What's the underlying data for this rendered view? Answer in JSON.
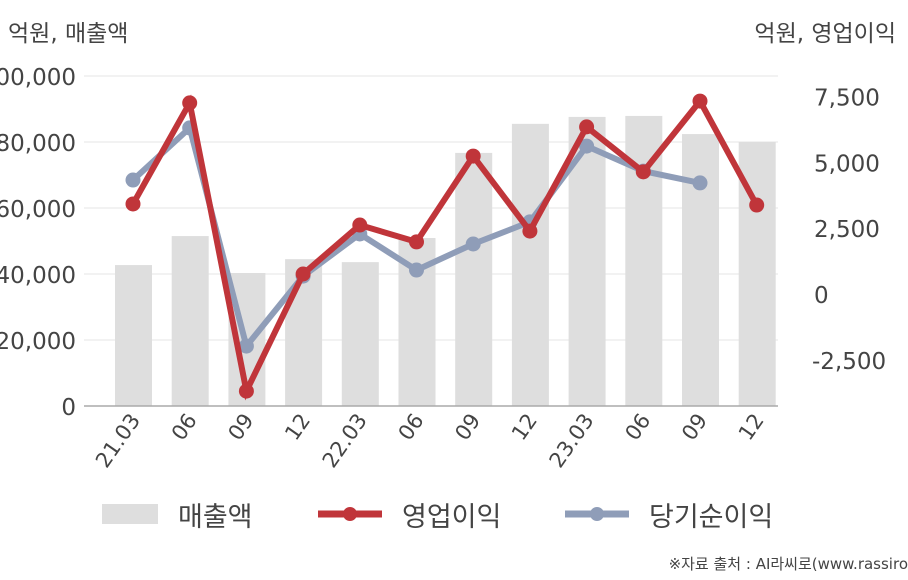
{
  "units": {
    "left": "억원, 매출액",
    "right": "억원, 영업이익"
  },
  "legend": {
    "revenue": "매출액",
    "operating_profit": "영업이익",
    "net_income": "당기순이익"
  },
  "source": "※자료 출처 : AI라씨로(www.rassiro",
  "colors": {
    "revenue": "#dedede",
    "operating_profit": "#c0353a",
    "net_income": "#8f9db8",
    "grid": "#e6e6e6",
    "axis": "#aaaaaa",
    "text": "#444444"
  },
  "chart_data": {
    "type": "bar+line",
    "title": "",
    "categories": [
      "21.03",
      "06",
      "09",
      "12",
      "22.03",
      "06",
      "09",
      "12",
      "23.03",
      "06",
      "09",
      "12"
    ],
    "left_axis": {
      "label": "억원, 매출액",
      "ticks": [
        "00,000",
        "80,000",
        "60,000",
        "40,000",
        "20,000",
        "0"
      ],
      "tick_values": [
        100000,
        80000,
        60000,
        40000,
        20000,
        0
      ],
      "ylim": [
        0,
        100000
      ]
    },
    "right_axis": {
      "label": "억원, 영업이익",
      "ticks": [
        "7,500",
        "5,000",
        "2,500",
        "0",
        "-2,500"
      ],
      "tick_values": [
        7500,
        5000,
        2500,
        0,
        -2500
      ],
      "ylim": [
        -4300,
        8200
      ]
    },
    "series": [
      {
        "name": "매출액",
        "type": "bar",
        "axis": "left",
        "values": [
          42700,
          51500,
          40300,
          44500,
          43600,
          50900,
          76700,
          85500,
          87600,
          87900,
          82400,
          80000
        ]
      },
      {
        "name": "영업이익",
        "type": "line",
        "axis": "right",
        "values": [
          3420,
          7260,
          -3690,
          760,
          2620,
          1980,
          5240,
          2390,
          6350,
          4640,
          7330,
          3380
        ]
      },
      {
        "name": "당기순이익",
        "type": "line",
        "axis": "right",
        "values": [
          4330,
          6310,
          -1980,
          680,
          2280,
          910,
          1900,
          2740,
          5620,
          4670,
          4220,
          null
        ]
      }
    ],
    "grid": true,
    "legend_position": "bottom"
  }
}
